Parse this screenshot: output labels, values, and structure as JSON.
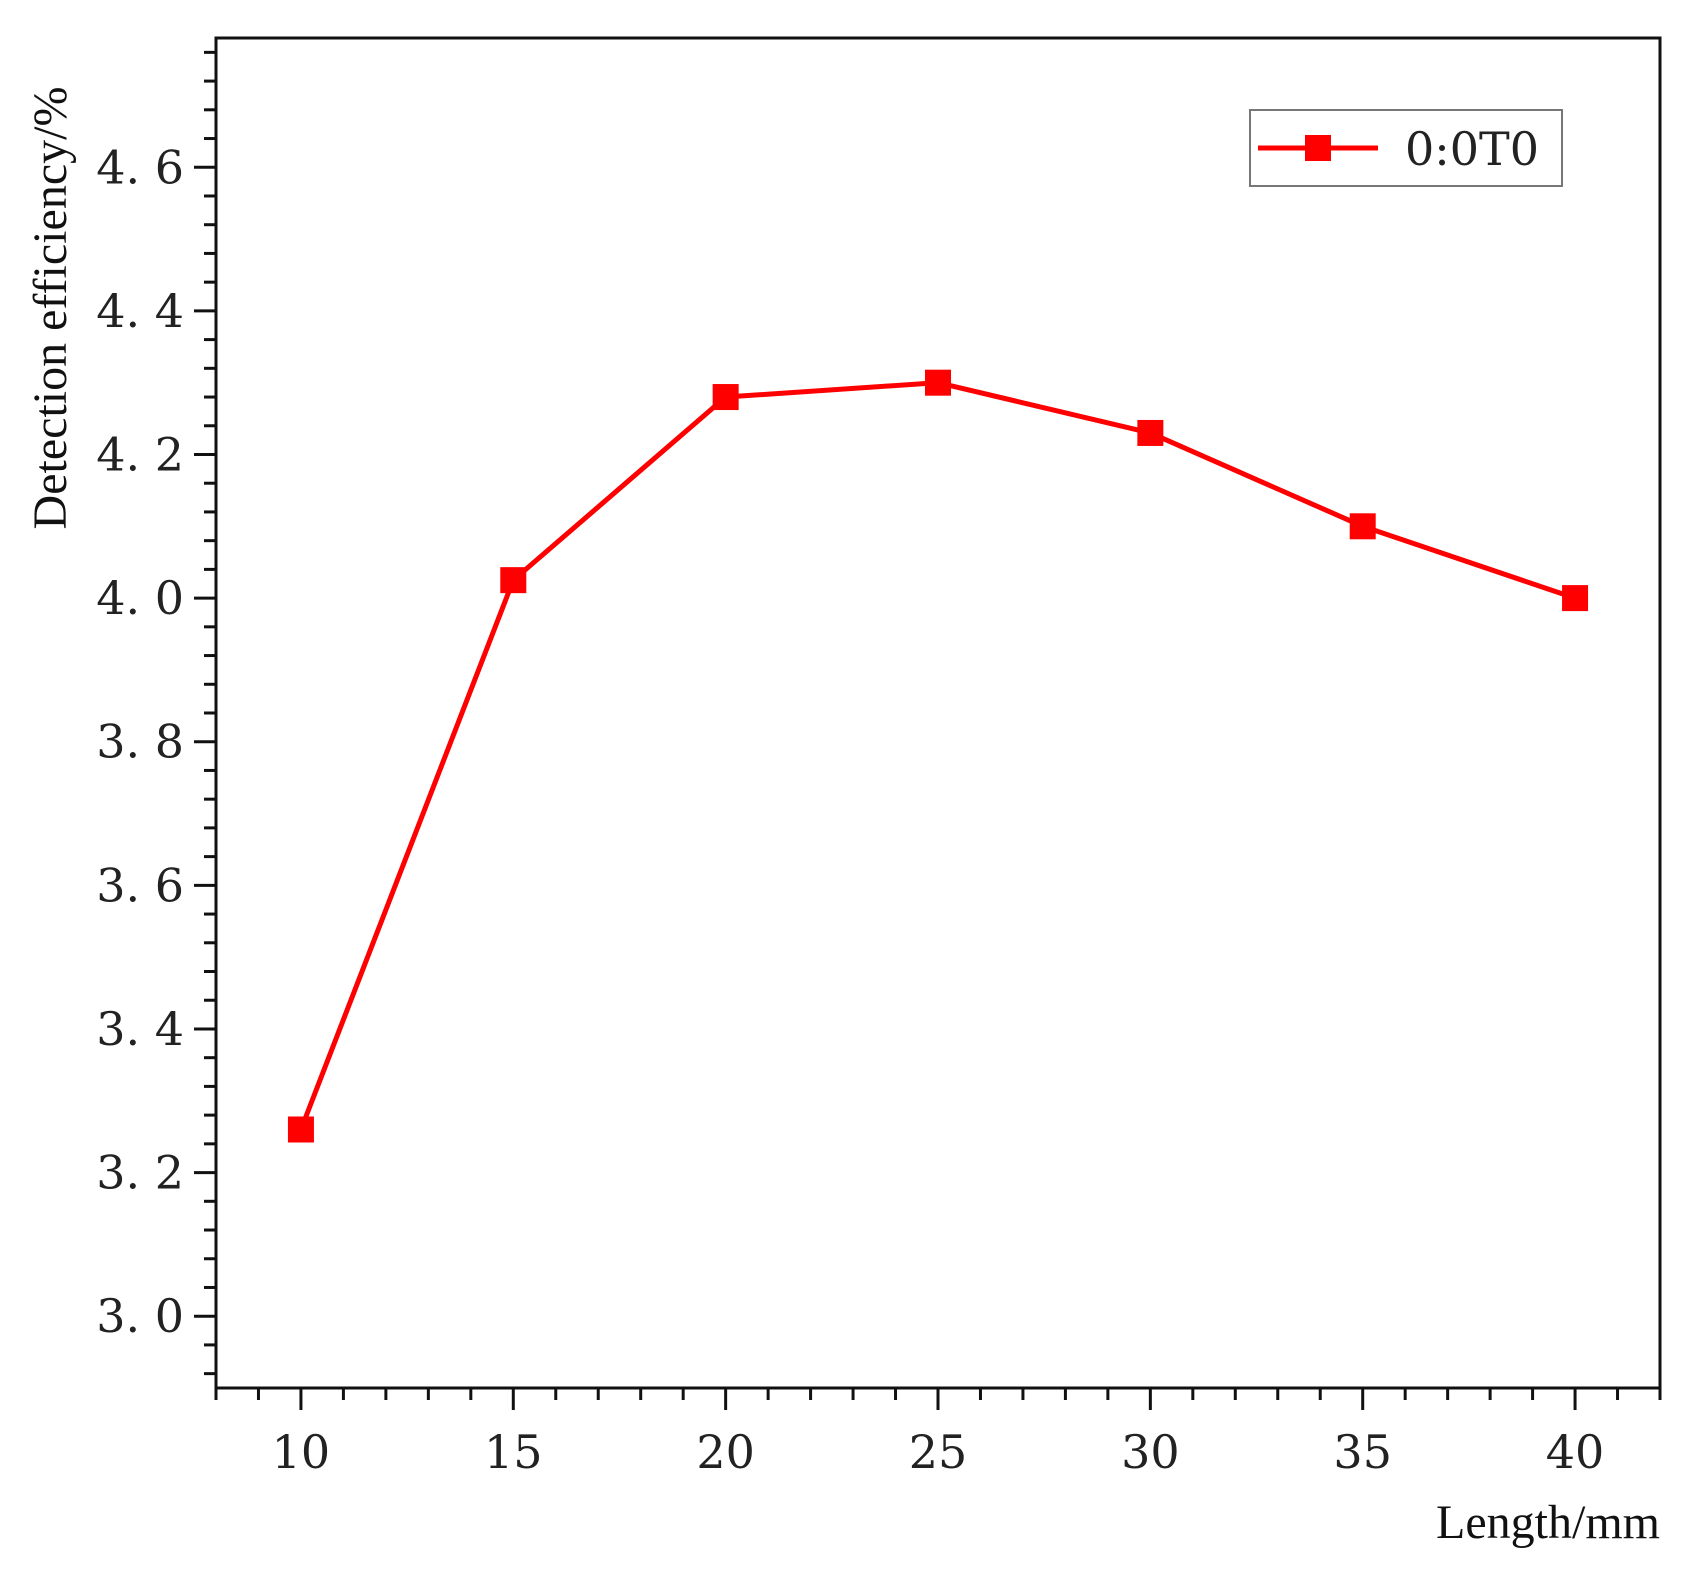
{
  "chart_data": {
    "type": "line",
    "title": "",
    "xlabel": "Length/mm",
    "ylabel": "Detection efficiency/%",
    "xlim": [
      8,
      42
    ],
    "ylim": [
      2.9,
      4.78
    ],
    "x_ticks": [
      10,
      15,
      20,
      25,
      30,
      35,
      40
    ],
    "x_tick_labels": [
      "10",
      "15",
      "20",
      "25",
      "30",
      "35",
      "40"
    ],
    "y_ticks": [
      3.0,
      3.2,
      3.4,
      3.6,
      3.8,
      4.0,
      4.2,
      4.4,
      4.6
    ],
    "y_tick_labels": [
      "3. 0",
      "3. 2",
      "3. 4",
      "3. 6",
      "3. 8",
      "4. 0",
      "4. 2",
      "4. 4",
      "4. 6"
    ],
    "grid": false,
    "legend_position": "top-right",
    "series": [
      {
        "name": "0:0T0",
        "color": "#ff0000",
        "marker": "square",
        "x": [
          10,
          15,
          20,
          25,
          30,
          35,
          40
        ],
        "y": [
          3.26,
          4.025,
          4.28,
          4.3,
          4.23,
          4.1,
          4.0
        ]
      }
    ]
  }
}
